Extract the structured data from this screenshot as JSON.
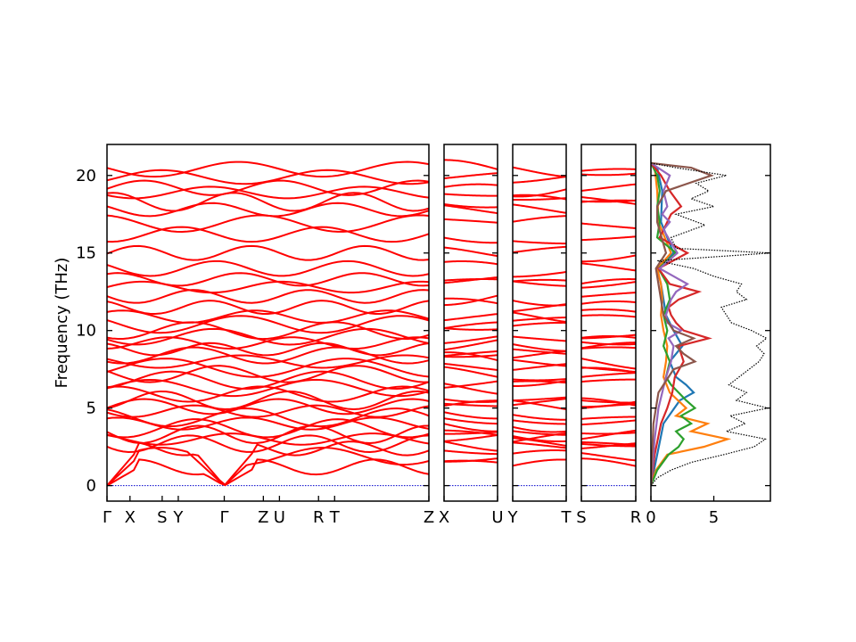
{
  "chart_data": {
    "type": "line",
    "ylabel": "Frequency (THz)",
    "ylim": [
      -1,
      22
    ],
    "yticks": [
      0,
      5,
      10,
      15,
      20
    ],
    "band_color": "#ff0000",
    "zero_line_color": "#0000cc",
    "panels": [
      {
        "id": "band-main",
        "xlim": [
          0,
          7
        ],
        "kpoints": [
          {
            "label": "Γ",
            "x": 0
          },
          {
            "label": "X",
            "x": 0.5
          },
          {
            "label": "S",
            "x": 1.2
          },
          {
            "label": "Y",
            "x": 1.55
          },
          {
            "label": "Γ",
            "x": 2.55
          },
          {
            "label": "Z",
            "x": 3.4
          },
          {
            "label": "U",
            "x": 3.75
          },
          {
            "label": "R",
            "x": 4.6
          },
          {
            "label": "T",
            "x": 4.95
          },
          {
            "label": "Z",
            "x": 7
          }
        ]
      },
      {
        "id": "band-xu",
        "xlim": [
          0,
          1
        ],
        "kpoints": [
          {
            "label": "X",
            "x": 0
          },
          {
            "label": "U",
            "x": 1
          }
        ]
      },
      {
        "id": "band-yt",
        "xlim": [
          0,
          1
        ],
        "kpoints": [
          {
            "label": "Y",
            "x": 0
          },
          {
            "label": "T",
            "x": 1
          }
        ]
      },
      {
        "id": "band-sr",
        "xlim": [
          0,
          1
        ],
        "kpoints": [
          {
            "label": "S",
            "x": 0
          },
          {
            "label": "R",
            "x": 1
          }
        ]
      }
    ],
    "band_levels": [
      1.2,
      1.9,
      2.4,
      2.7,
      3.0,
      3.3,
      3.7,
      4.0,
      4.4,
      4.8,
      5.1,
      5.5,
      5.9,
      6.3,
      6.8,
      7.2,
      7.6,
      8.0,
      8.4,
      8.8,
      9.2,
      9.6,
      10.0,
      10.4,
      10.9,
      11.5,
      12.2,
      12.8,
      13.3,
      14.0,
      15.0,
      16.2,
      16.9,
      17.8,
      18.3,
      18.9,
      19.2,
      19.9,
      20.4
    ],
    "dos_panel": {
      "xlim": [
        0,
        9.5
      ],
      "xticks": [
        0,
        5
      ],
      "total_color": "#000000",
      "total": [
        [
          0,
          0
        ],
        [
          0.5,
          0.5
        ],
        [
          1,
          1.6
        ],
        [
          1.5,
          3.2
        ],
        [
          2,
          5.8
        ],
        [
          2.5,
          8.2
        ],
        [
          3,
          9.1
        ],
        [
          3.5,
          6.0
        ],
        [
          4,
          7.5
        ],
        [
          4.5,
          6.3
        ],
        [
          5,
          9.3
        ],
        [
          5.5,
          6.8
        ],
        [
          6,
          7.6
        ],
        [
          6.5,
          6.2
        ],
        [
          7,
          7.0
        ],
        [
          7.5,
          7.8
        ],
        [
          8,
          8.6
        ],
        [
          8.5,
          9.0
        ],
        [
          9,
          8.4
        ],
        [
          9.5,
          9.2
        ],
        [
          10,
          8.0
        ],
        [
          10.5,
          6.4
        ],
        [
          11,
          6.0
        ],
        [
          11.5,
          5.6
        ],
        [
          12,
          7.6
        ],
        [
          12.5,
          6.8
        ],
        [
          13,
          7.2
        ],
        [
          13.5,
          5.0
        ],
        [
          14,
          3.4
        ],
        [
          14.5,
          0.5
        ],
        [
          15,
          9.5
        ],
        [
          15.3,
          2.0
        ],
        [
          16,
          1.6
        ],
        [
          16.8,
          4.3
        ],
        [
          17.5,
          2.0
        ],
        [
          18,
          5.0
        ],
        [
          18.5,
          3.2
        ],
        [
          19,
          4.6
        ],
        [
          19.5,
          3.6
        ],
        [
          20,
          6.0
        ],
        [
          20.5,
          2.0
        ],
        [
          20.8,
          0
        ]
      ],
      "projections": [
        {
          "color": "#1f77b4",
          "points": [
            [
              0,
              0
            ],
            [
              2,
              0.5
            ],
            [
              4,
              1.0
            ],
            [
              5.5,
              2.3
            ],
            [
              6,
              3.4
            ],
            [
              6.5,
              2.8
            ],
            [
              7,
              2.0
            ],
            [
              8,
              1.5
            ],
            [
              9,
              2.5
            ],
            [
              10,
              1.8
            ],
            [
              11,
              1.2
            ],
            [
              12,
              1.0
            ],
            [
              13,
              0.8
            ],
            [
              14,
              0.5
            ],
            [
              15,
              1.8
            ],
            [
              17,
              0.8
            ],
            [
              19,
              0.9
            ],
            [
              20.5,
              0.5
            ],
            [
              20.8,
              0
            ]
          ]
        },
        {
          "color": "#ff7f0e",
          "points": [
            [
              0,
              0
            ],
            [
              1,
              0.4
            ],
            [
              2,
              1.3
            ],
            [
              2.5,
              4.2
            ],
            [
              3,
              6.1
            ],
            [
              3.5,
              3.2
            ],
            [
              4,
              4.5
            ],
            [
              4.5,
              2.0
            ],
            [
              5,
              2.8
            ],
            [
              6,
              1.5
            ],
            [
              7,
              1.0
            ],
            [
              8,
              1.2
            ],
            [
              9,
              1.3
            ],
            [
              10,
              1.0
            ],
            [
              11,
              0.8
            ],
            [
              12,
              0.9
            ],
            [
              13,
              0.8
            ],
            [
              14,
              0.5
            ],
            [
              15,
              1.6
            ],
            [
              17,
              0.6
            ],
            [
              19,
              0.5
            ],
            [
              20.5,
              0.3
            ],
            [
              20.8,
              0
            ]
          ]
        },
        {
          "color": "#2ca02c",
          "points": [
            [
              0,
              0
            ],
            [
              1,
              0.5
            ],
            [
              2,
              1.4
            ],
            [
              2.5,
              2.2
            ],
            [
              3,
              2.6
            ],
            [
              3.5,
              2.0
            ],
            [
              4,
              3.2
            ],
            [
              4.5,
              2.4
            ],
            [
              5,
              3.5
            ],
            [
              5.5,
              2.8
            ],
            [
              6,
              2.2
            ],
            [
              6.5,
              1.6
            ],
            [
              7,
              1.2
            ],
            [
              8,
              1.5
            ],
            [
              9,
              1.0
            ],
            [
              10,
              1.3
            ],
            [
              11,
              1.0
            ],
            [
              12,
              1.5
            ],
            [
              13,
              1.3
            ],
            [
              14,
              0.6
            ],
            [
              15,
              2.0
            ],
            [
              16,
              0.5
            ],
            [
              17,
              0.7
            ],
            [
              18,
              0.5
            ],
            [
              19,
              0.7
            ],
            [
              20,
              0.5
            ],
            [
              20.8,
              0
            ]
          ]
        },
        {
          "color": "#d62728",
          "points": [
            [
              0,
              0
            ],
            [
              2,
              0.3
            ],
            [
              4,
              0.8
            ],
            [
              5,
              1.3
            ],
            [
              6,
              1.7
            ],
            [
              7,
              1.9
            ],
            [
              8,
              2.6
            ],
            [
              9,
              2.2
            ],
            [
              9.5,
              4.6
            ],
            [
              10,
              2.6
            ],
            [
              10.5,
              2.0
            ],
            [
              11,
              1.6
            ],
            [
              11.5,
              1.4
            ],
            [
              12,
              2.2
            ],
            [
              12.5,
              3.8
            ],
            [
              13,
              1.5
            ],
            [
              14,
              0.6
            ],
            [
              15,
              2.9
            ],
            [
              16,
              0.7
            ],
            [
              17.5,
              1.6
            ],
            [
              18,
              2.4
            ],
            [
              19,
              1.5
            ],
            [
              20,
              0.8
            ],
            [
              20.8,
              0
            ]
          ]
        },
        {
          "color": "#9467bd",
          "points": [
            [
              0,
              0
            ],
            [
              3,
              0.3
            ],
            [
              5,
              0.6
            ],
            [
              6,
              0.9
            ],
            [
              7,
              1.2
            ],
            [
              8,
              1.6
            ],
            [
              9,
              1.8
            ],
            [
              9.5,
              1.4
            ],
            [
              10,
              2.4
            ],
            [
              10.5,
              1.3
            ],
            [
              11,
              1.2
            ],
            [
              12,
              1.6
            ],
            [
              12.5,
              2.0
            ],
            [
              13,
              2.9
            ],
            [
              13.5,
              1.8
            ],
            [
              14,
              0.7
            ],
            [
              15,
              2.1
            ],
            [
              16.5,
              1.0
            ],
            [
              17,
              1.5
            ],
            [
              17.5,
              0.9
            ],
            [
              18,
              1.3
            ],
            [
              19,
              1.0
            ],
            [
              20,
              1.5
            ],
            [
              20.8,
              0
            ]
          ]
        },
        {
          "color": "#8c564b",
          "points": [
            [
              0,
              0
            ],
            [
              4,
              0.2
            ],
            [
              6,
              0.6
            ],
            [
              7,
              1.4
            ],
            [
              7.5,
              1.8
            ],
            [
              8,
              3.5
            ],
            [
              8.5,
              2.6
            ],
            [
              9,
              2.0
            ],
            [
              9.5,
              3.4
            ],
            [
              10,
              1.8
            ],
            [
              11,
              1.0
            ],
            [
              12,
              0.8
            ],
            [
              13,
              0.6
            ],
            [
              14,
              0.4
            ],
            [
              15,
              1.2
            ],
            [
              17,
              0.5
            ],
            [
              18,
              0.5
            ],
            [
              19,
              1.2
            ],
            [
              20,
              4.8
            ],
            [
              20.5,
              3.2
            ],
            [
              20.8,
              0
            ]
          ]
        }
      ]
    }
  }
}
